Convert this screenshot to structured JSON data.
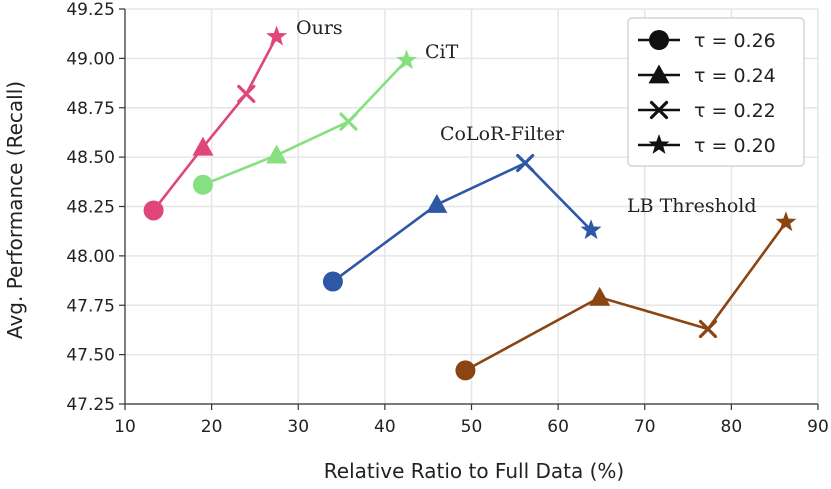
{
  "chart_data": {
    "type": "line",
    "title": "",
    "xlabel": "Relative Ratio to Full Data (%)",
    "ylabel": "Avg. Performance (Recall)",
    "xlim": [
      10,
      90
    ],
    "ylim": [
      47.25,
      49.25
    ],
    "xticks": [
      10,
      20,
      30,
      40,
      50,
      60,
      70,
      80,
      90
    ],
    "yticks": [
      47.25,
      47.5,
      47.75,
      48.0,
      48.25,
      48.5,
      48.75,
      49.0,
      49.25
    ],
    "xtick_labels": [
      "10",
      "20",
      "30",
      "40",
      "50",
      "60",
      "70",
      "80",
      "90"
    ],
    "ytick_labels": [
      "47.25",
      "47.50",
      "47.75",
      "48.00",
      "48.25",
      "48.50",
      "48.75",
      "49.00",
      "49.25"
    ],
    "grid": true,
    "marker_order": [
      "circle",
      "triangle",
      "x",
      "star"
    ],
    "series": [
      {
        "name": "Ours",
        "color": "#e0457b",
        "x": [
          13.3,
          19.0,
          24.0,
          27.5
        ],
        "y": [
          48.23,
          48.55,
          48.82,
          49.11
        ]
      },
      {
        "name": "CiT",
        "color": "#86e07f",
        "x": [
          19.0,
          27.5,
          35.8,
          42.5
        ],
        "y": [
          48.36,
          48.51,
          48.68,
          48.99
        ]
      },
      {
        "name": "CoLoR-Filter",
        "color": "#2e58a6",
        "x": [
          34.0,
          46.0,
          56.2,
          63.8
        ],
        "y": [
          47.87,
          48.26,
          48.47,
          48.13
        ]
      },
      {
        "name": "LB Threshold",
        "color": "#8b4513",
        "x": [
          49.3,
          64.8,
          77.3,
          86.3
        ],
        "y": [
          47.42,
          47.79,
          47.63,
          48.17
        ]
      }
    ],
    "legend": {
      "position": "top-right",
      "entries": [
        {
          "marker": "circle",
          "label": "τ = 0.26"
        },
        {
          "marker": "triangle",
          "label": "τ = 0.24"
        },
        {
          "marker": "x",
          "label": "τ = 0.22"
        },
        {
          "marker": "star",
          "label": "τ = 0.20"
        }
      ]
    }
  }
}
